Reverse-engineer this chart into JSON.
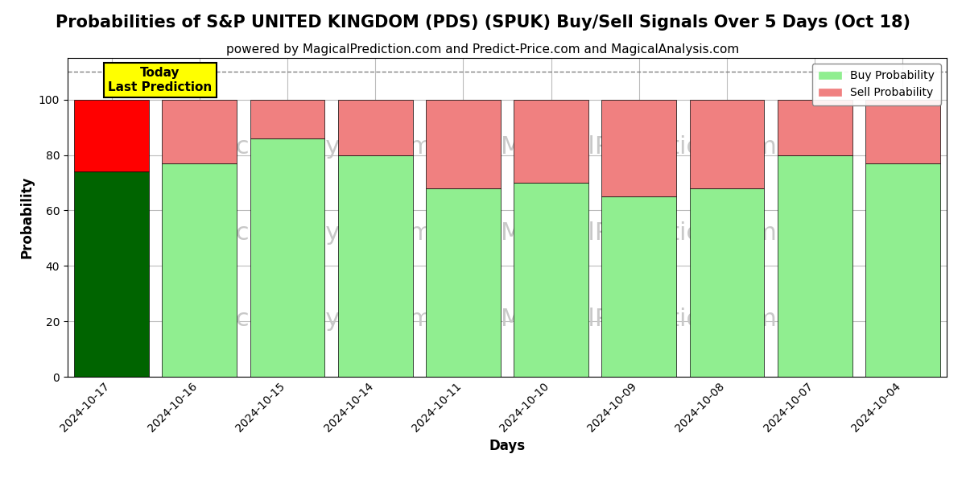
{
  "title": "Probabilities of S&P UNITED KINGDOM (PDS) (SPUK) Buy/Sell Signals Over 5 Days (Oct 18)",
  "subtitle": "powered by MagicalPrediction.com and Predict-Price.com and MagicalAnalysis.com",
  "xlabel": "Days",
  "ylabel": "Probability",
  "categories": [
    "2024-10-17",
    "2024-10-16",
    "2024-10-15",
    "2024-10-14",
    "2024-10-11",
    "2024-10-10",
    "2024-10-09",
    "2024-10-08",
    "2024-10-07",
    "2024-10-04"
  ],
  "buy_values": [
    74,
    77,
    86,
    80,
    68,
    70,
    65,
    68,
    80,
    77
  ],
  "sell_values": [
    26,
    23,
    14,
    20,
    32,
    30,
    35,
    32,
    20,
    23
  ],
  "today_bar_buy_color": "#006400",
  "today_bar_sell_color": "#FF0000",
  "normal_bar_buy_color": "#90EE90",
  "normal_bar_sell_color": "#F08080",
  "today_annotation_text": "Today\nLast Prediction",
  "today_annotation_bg": "#FFFF00",
  "today_annotation_fontsize": 11,
  "legend_buy_color": "#90EE90",
  "legend_sell_color": "#F08080",
  "legend_buy_label": "Buy Probability",
  "legend_sell_label": "Sell Probability",
  "ylim": [
    0,
    115
  ],
  "yticks": [
    0,
    20,
    40,
    60,
    80,
    100
  ],
  "dashed_line_y": 110,
  "watermark_color": "#C8C8C8",
  "watermark_fontsize": 22,
  "background_color": "#FFFFFF",
  "grid_color": "#BBBBBB",
  "title_fontsize": 15,
  "subtitle_fontsize": 11,
  "axis_label_fontsize": 12,
  "bar_width": 0.85
}
